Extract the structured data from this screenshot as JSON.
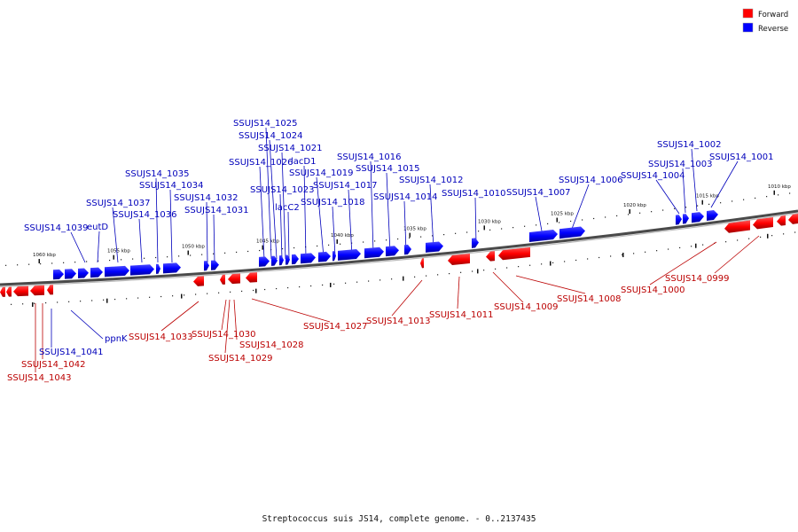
{
  "caption": "Streptococcus suis JS14, complete genome. - 0..2137435",
  "legend": [
    {
      "label": "Forward",
      "color": "#ff0000"
    },
    {
      "label": "Reverse",
      "color": "#0000ff"
    }
  ],
  "colors": {
    "forward": "#ff0000",
    "reverse": "#0000ff",
    "backbone": "#666666",
    "label_forward": "#bb0000",
    "label_reverse": "#0000bb"
  },
  "ticks": [
    "1060 kbp",
    "1055 kbp",
    "1050 kbp",
    "1045 kbp",
    "1040 kbp",
    "1035 kbp",
    "1030 kbp",
    "1025 kbp",
    "1020 kbp",
    "1015 kbp",
    "1010 kbp"
  ],
  "reverse_labels": [
    "SSUJS14_1039",
    "eutD",
    "SSUJS14_1037",
    "SSUJS14_1036",
    "SSUJS14_1035",
    "SSUJS14_1034",
    "SSUJS14_1032",
    "SSUJS14_1031",
    "SSUJS14_1026",
    "SSUJS14_1025",
    "SSUJS14_1024",
    "SSUJS14_1021",
    "SSUJS14_1023",
    "lacC2",
    "lacD1",
    "SSUJS14_1019",
    "SSUJS14_1018",
    "SSUJS14_1017",
    "SSUJS14_1016",
    "SSUJS14_1015",
    "SSUJS14_1014",
    "SSUJS14_1012",
    "SSUJS14_1010",
    "SSUJS14_1007",
    "SSUJS14_1006",
    "SSUJS14_1004",
    "SSUJS14_1003",
    "SSUJS14_1002",
    "SSUJS14_1001",
    "SSUJS14_1041",
    "ppnK"
  ],
  "forward_labels": [
    "SSUJS14_1043",
    "SSUJS14_1042",
    "SSUJS14_1033",
    "SSUJS14_1030",
    "SSUJS14_1029",
    "SSUJS14_1028",
    "SSUJS14_1027",
    "SSUJS14_1013",
    "SSUJS14_1011",
    "SSUJS14_1009",
    "SSUJS14_1008",
    "SSUJS14_1000",
    "SSUJS14_0999"
  ]
}
